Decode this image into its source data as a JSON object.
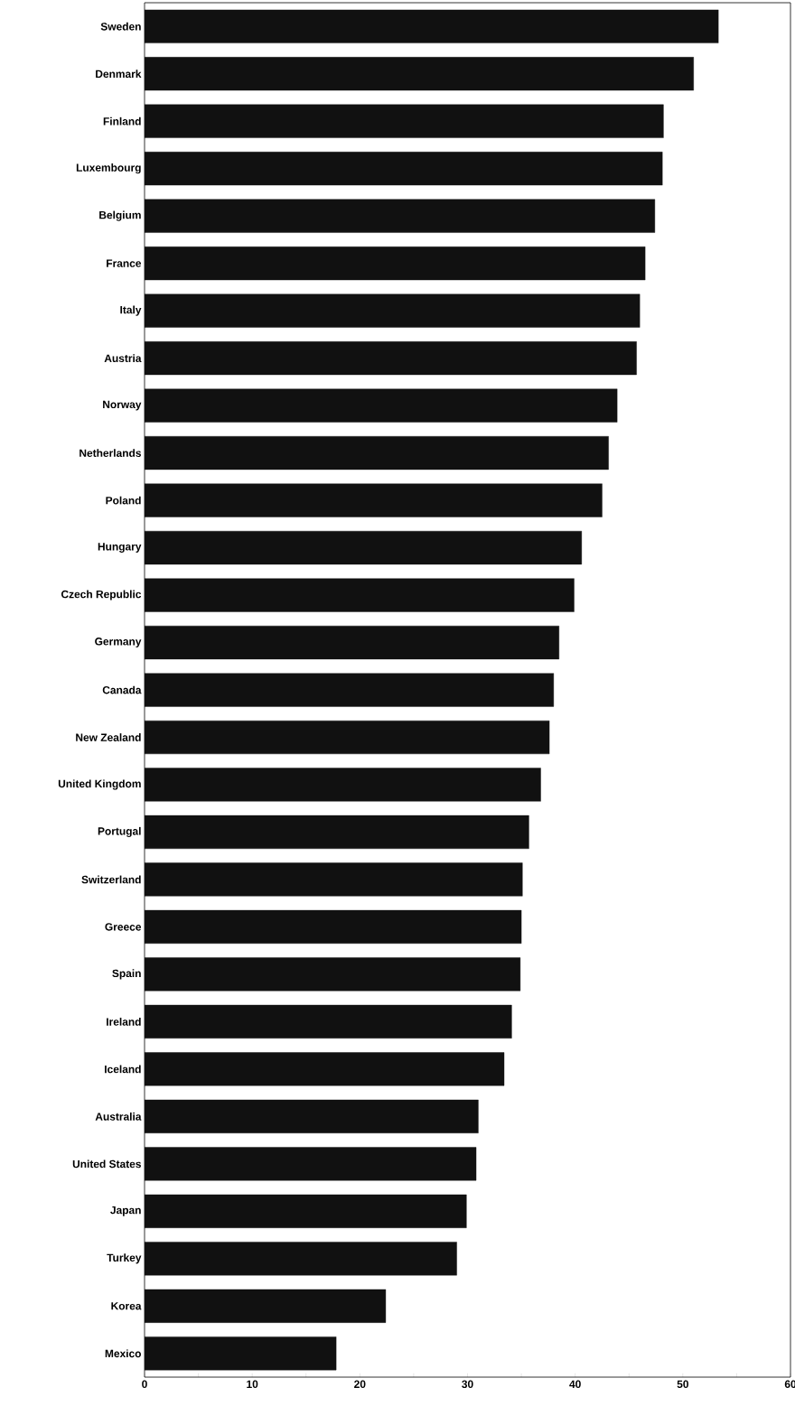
{
  "chart_data": {
    "type": "bar",
    "orientation": "horizontal",
    "color": "#111111",
    "categories": [
      "Sweden",
      "Denmark",
      "Finland",
      "Luxembourg",
      "Belgium",
      "France",
      "Italy",
      "Austria",
      "Norway",
      "Netherlands",
      "Poland",
      "Hungary",
      "Czech Republic",
      "Germany",
      "Canada",
      "New Zealand",
      "United Kingdom",
      "Portugal",
      "Switzerland",
      "Greece",
      "Spain",
      "Ireland",
      "Iceland",
      "Australia",
      "United States",
      "Japan",
      "Turkey",
      "Korea",
      "Mexico"
    ],
    "values": [
      53.3,
      51.0,
      48.2,
      48.1,
      47.4,
      46.5,
      46.0,
      45.7,
      43.9,
      43.1,
      42.5,
      40.6,
      39.9,
      38.5,
      38.0,
      37.6,
      36.8,
      35.7,
      35.1,
      35.0,
      34.9,
      34.1,
      33.4,
      31.0,
      30.8,
      29.9,
      29.0,
      22.4,
      17.8
    ],
    "xlim": [
      0,
      60
    ],
    "xticks": [
      0,
      {
        "value": 5,
        "label": null
      },
      10,
      {
        "value": 15,
        "label": null
      },
      20,
      {
        "value": 25,
        "label": null
      },
      30,
      {
        "value": 35,
        "label": null
      },
      40,
      {
        "value": 45,
        "label": null
      },
      50,
      {
        "value": 55,
        "label": null
      },
      60
    ],
    "grid": false
  }
}
